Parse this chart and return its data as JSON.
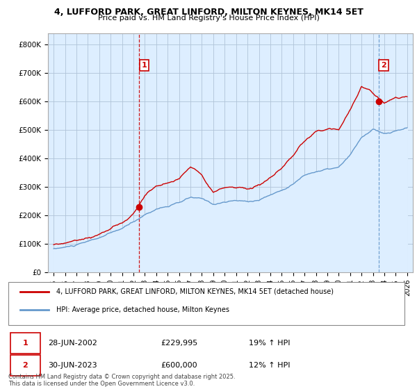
{
  "title1": "4, LUFFORD PARK, GREAT LINFORD, MILTON KEYNES, MK14 5ET",
  "title2": "Price paid vs. HM Land Registry's House Price Index (HPI)",
  "legend_label_red": "4, LUFFORD PARK, GREAT LINFORD, MILTON KEYNES, MK14 5ET (detached house)",
  "legend_label_blue": "HPI: Average price, detached house, Milton Keynes",
  "annotation1_date": "28-JUN-2002",
  "annotation1_price": "£229,995",
  "annotation1_hpi": "19% ↑ HPI",
  "annotation2_date": "30-JUN-2023",
  "annotation2_price": "£600,000",
  "annotation2_hpi": "12% ↑ HPI",
  "footer": "Contains HM Land Registry data © Crown copyright and database right 2025.\nThis data is licensed under the Open Government Licence v3.0.",
  "red_color": "#cc0000",
  "blue_color": "#6699cc",
  "fill_color": "#ddeeff",
  "background_color": "#ffffff",
  "grid_color": "#cccccc",
  "marker1_year": 2002.5,
  "marker1_value": 229995,
  "marker2_year": 2023.5,
  "marker2_value": 600000,
  "ylim_max": 840000,
  "xlim_min": 1994.5,
  "xlim_max": 2026.5
}
